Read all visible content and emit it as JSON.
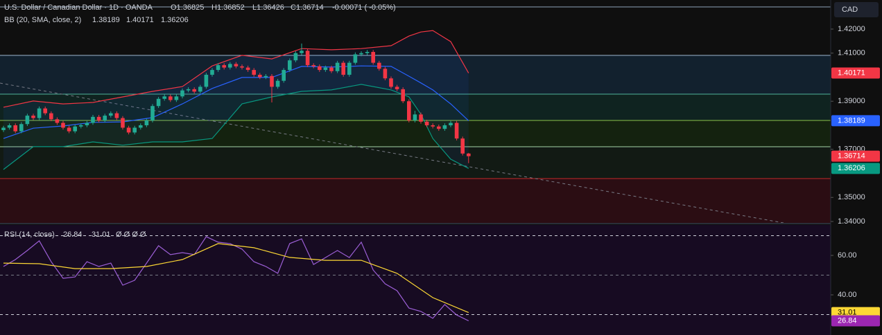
{
  "chart_data": [
    {
      "type": "candlestick",
      "title": "U.S. Dollar / Canadian Dollar · 1D · OANDA",
      "ohlc_labels": [
        "O1.36825",
        "H1.36852",
        "L1.36426",
        "C1.36714"
      ],
      "change": "-0.00071 ( -0.05%)",
      "currency": "CAD",
      "indicator": "BB (20, SMA, close, 2)",
      "indicator_values": [
        "1.38189",
        "1.40171",
        "1.36206"
      ],
      "up_color": "#22ab94",
      "down_color": "#f23645",
      "open": [
        1.378,
        1.379,
        1.38,
        1.3775,
        1.3805,
        1.384,
        1.383,
        1.387,
        1.385,
        1.3825,
        1.381,
        1.379,
        1.3775,
        1.3795,
        1.38,
        1.381,
        1.3835,
        1.382,
        1.384,
        1.385,
        1.383,
        1.379,
        1.377,
        1.379,
        1.38,
        1.382,
        1.388,
        1.391,
        1.392,
        1.3905,
        1.392,
        1.3945,
        1.395,
        1.394,
        1.396,
        1.401,
        1.403,
        1.405,
        1.404,
        1.4055,
        1.4045,
        1.404,
        1.403,
        1.401,
        1.4,
        1.4005,
        1.396,
        1.3985,
        1.403,
        1.407,
        1.41,
        1.411,
        1.405,
        1.4045,
        1.403,
        1.404,
        1.4025,
        1.406,
        1.401,
        1.406,
        1.4095,
        1.41,
        1.4105,
        1.406,
        1.4035,
        1.3995,
        1.396,
        1.395,
        1.39,
        1.382,
        1.3845,
        1.3815,
        1.38,
        1.3795,
        1.3785,
        1.38,
        1.381,
        1.3745,
        1.36825
      ],
      "high": [
        1.3798,
        1.3808,
        1.3808,
        1.3813,
        1.3848,
        1.3848,
        1.3878,
        1.3878,
        1.3858,
        1.3833,
        1.3818,
        1.3798,
        1.3803,
        1.3808,
        1.3818,
        1.3843,
        1.3843,
        1.3848,
        1.3858,
        1.3858,
        1.3838,
        1.3798,
        1.3798,
        1.3808,
        1.3828,
        1.3888,
        1.3918,
        1.3928,
        1.3928,
        1.3928,
        1.3953,
        1.3958,
        1.3958,
        1.3968,
        1.4018,
        1.4038,
        1.4058,
        1.4058,
        1.4063,
        1.4063,
        1.4053,
        1.4048,
        1.4038,
        1.4018,
        1.4013,
        1.4013,
        1.3993,
        1.4038,
        1.4078,
        1.4108,
        1.414,
        1.4118,
        1.4058,
        1.4053,
        1.4048,
        1.4048,
        1.4068,
        1.4068,
        1.4068,
        1.4103,
        1.4108,
        1.4113,
        1.4113,
        1.4068,
        1.4043,
        1.4003,
        1.3968,
        1.3958,
        1.3908,
        1.386,
        1.3853,
        1.3823,
        1.3808,
        1.3803,
        1.3808,
        1.3818,
        1.3818,
        1.3753,
        1.36852
      ],
      "low": [
        1.3772,
        1.3782,
        1.3767,
        1.3767,
        1.3797,
        1.3822,
        1.3822,
        1.3842,
        1.3817,
        1.3802,
        1.3782,
        1.3767,
        1.3767,
        1.3787,
        1.3792,
        1.3802,
        1.3812,
        1.3812,
        1.3832,
        1.3822,
        1.3782,
        1.3762,
        1.3762,
        1.3782,
        1.3792,
        1.3812,
        1.3872,
        1.3902,
        1.3897,
        1.3897,
        1.3912,
        1.3937,
        1.3932,
        1.3932,
        1.3952,
        1.4002,
        1.4022,
        1.4032,
        1.4032,
        1.4037,
        1.4032,
        1.4022,
        1.4002,
        1.3992,
        1.3992,
        1.3895,
        1.3952,
        1.3977,
        1.4022,
        1.4062,
        1.4092,
        1.4042,
        1.4037,
        1.4022,
        1.4022,
        1.4017,
        1.4017,
        1.4002,
        1.4002,
        1.4052,
        1.4087,
        1.4092,
        1.4052,
        1.4027,
        1.3987,
        1.3952,
        1.3942,
        1.3892,
        1.3812,
        1.3812,
        1.3807,
        1.3792,
        1.3787,
        1.3777,
        1.3777,
        1.3792,
        1.3737,
        1.36745,
        1.36426
      ],
      "close": [
        1.379,
        1.38,
        1.3775,
        1.3805,
        1.384,
        1.383,
        1.387,
        1.385,
        1.3825,
        1.381,
        1.379,
        1.3775,
        1.3795,
        1.38,
        1.381,
        1.3835,
        1.382,
        1.384,
        1.385,
        1.383,
        1.379,
        1.377,
        1.379,
        1.38,
        1.382,
        1.388,
        1.391,
        1.392,
        1.3905,
        1.392,
        1.3945,
        1.395,
        1.394,
        1.396,
        1.401,
        1.403,
        1.405,
        1.404,
        1.4055,
        1.4045,
        1.404,
        1.403,
        1.401,
        1.4,
        1.4005,
        1.396,
        1.3985,
        1.403,
        1.407,
        1.41,
        1.411,
        1.405,
        1.4045,
        1.403,
        1.404,
        1.4025,
        1.406,
        1.401,
        1.406,
        1.4095,
        1.41,
        1.4105,
        1.406,
        1.4035,
        1.3995,
        1.396,
        1.395,
        1.39,
        1.382,
        1.3845,
        1.3815,
        1.38,
        1.3795,
        1.3785,
        1.38,
        1.381,
        1.3745,
        1.36825,
        1.36714
      ],
      "series": [
        {
          "color": "#2962ff",
          "x": [
            0,
            5,
            10,
            15,
            20,
            25,
            30,
            35,
            40,
            45,
            50,
            55,
            60,
            65,
            68,
            70,
            72,
            75,
            78
          ],
          "values": [
            1.3745,
            1.3788,
            1.3797,
            1.3812,
            1.3814,
            1.3832,
            1.3889,
            1.3953,
            1.3999,
            1.3999,
            1.4045,
            1.4042,
            1.4047,
            1.4045,
            1.4004,
            1.3976,
            1.3947,
            1.3889,
            1.38189
          ]
        },
        {
          "color": "#f23645",
          "x": [
            0,
            5,
            10,
            15,
            20,
            25,
            30,
            35,
            40,
            45,
            50,
            55,
            60,
            65,
            68,
            70,
            72,
            75,
            78
          ],
          "values": [
            1.3875,
            1.3901,
            1.3889,
            1.3895,
            1.3918,
            1.3941,
            1.3961,
            1.4047,
            1.4091,
            1.4076,
            1.4119,
            1.4114,
            1.4119,
            1.4131,
            1.4171,
            1.4188,
            1.4194,
            1.4148,
            1.40171
          ]
        },
        {
          "color": "#089981",
          "x": [
            0,
            5,
            10,
            15,
            20,
            25,
            30,
            35,
            40,
            45,
            50,
            55,
            60,
            65,
            68,
            70,
            72,
            75,
            78
          ],
          "values": [
            1.3616,
            1.3711,
            1.3711,
            1.3731,
            1.3717,
            1.3731,
            1.3731,
            1.3745,
            1.3889,
            1.3918,
            1.3941,
            1.3947,
            1.397,
            1.3947,
            1.3918,
            1.3846,
            1.3745,
            1.3659,
            1.36206
          ]
        }
      ],
      "band_fill": "#2962ff",
      "ylim": [
        1.33942,
        1.43209
      ],
      "yticks": [
        {
          "value": 1.42,
          "label": "1.42000"
        },
        {
          "value": 1.41,
          "label": "1.41000"
        },
        {
          "value": 1.39,
          "label": "1.39000"
        },
        {
          "value": 1.37,
          "label": "1.37000"
        },
        {
          "value": 1.35,
          "label": "1.35000"
        },
        {
          "value": 1.34,
          "label": "1.34000"
        }
      ],
      "price_labels": [
        {
          "value": 1.40171,
          "color": "#f23645",
          "text_color": "#ffffff"
        },
        {
          "value": 1.38189,
          "color": "#2962ff",
          "text_color": "#ffffff"
        },
        {
          "value": 1.36714,
          "color": "#f23645",
          "text_color": "#ffffff"
        },
        {
          "value": 1.36206,
          "color": "#089981",
          "text_color": "#ffffff"
        }
      ]
    },
    {
      "type": "line",
      "indicator": "RSI (14, close)",
      "indicator_values": [
        "26.84",
        "31.01"
      ],
      "extra": "Ø Ø Ø Ø",
      "series": [
        {
          "color": "#9c5fd6",
          "x": [
            0,
            2,
            4,
            6,
            8,
            10,
            12,
            14,
            16,
            18,
            20,
            22,
            24,
            26,
            28,
            30,
            32,
            34,
            36,
            38,
            40,
            42,
            44,
            46,
            48,
            50,
            52,
            54,
            56,
            58,
            60,
            62,
            64,
            66,
            68,
            70,
            72,
            74,
            76,
            78
          ],
          "values": [
            54.4,
            57.9,
            62.5,
            67.4,
            56.8,
            48.4,
            49.1,
            56.8,
            54.4,
            56.1,
            44.9,
            47.4,
            56.1,
            64.9,
            60.4,
            61.4,
            60.4,
            69.5,
            66.7,
            66.0,
            63.2,
            56.8,
            54.4,
            50.9,
            66.0,
            68.4,
            55.4,
            58.9,
            62.5,
            58.9,
            66.7,
            52.6,
            45.6,
            42.1,
            33.3,
            31.6,
            28.1,
            35.1,
            29.8,
            26.84
          ]
        },
        {
          "color": "#fdd835",
          "x": [
            0,
            6,
            12,
            18,
            24,
            30,
            36,
            42,
            48,
            54,
            60,
            66,
            72,
            78
          ],
          "values": [
            56.1,
            55.8,
            53.3,
            53.3,
            54.4,
            57.9,
            66.0,
            63.9,
            59.0,
            57.5,
            57.5,
            50.9,
            38.6,
            31.01
          ]
        }
      ],
      "levels": [
        70,
        50,
        30
      ],
      "ylim": [
        19.65,
        75.44
      ],
      "yticks": [
        {
          "value": 60,
          "label": "60.00"
        },
        {
          "value": 40,
          "label": "40.00"
        }
      ],
      "price_labels": [
        {
          "value": 31.01,
          "color": "#fdd835",
          "text_color": "#000000"
        },
        {
          "value": 26.84,
          "color": "#9c27b0",
          "text_color": "#ffffff"
        }
      ]
    }
  ]
}
